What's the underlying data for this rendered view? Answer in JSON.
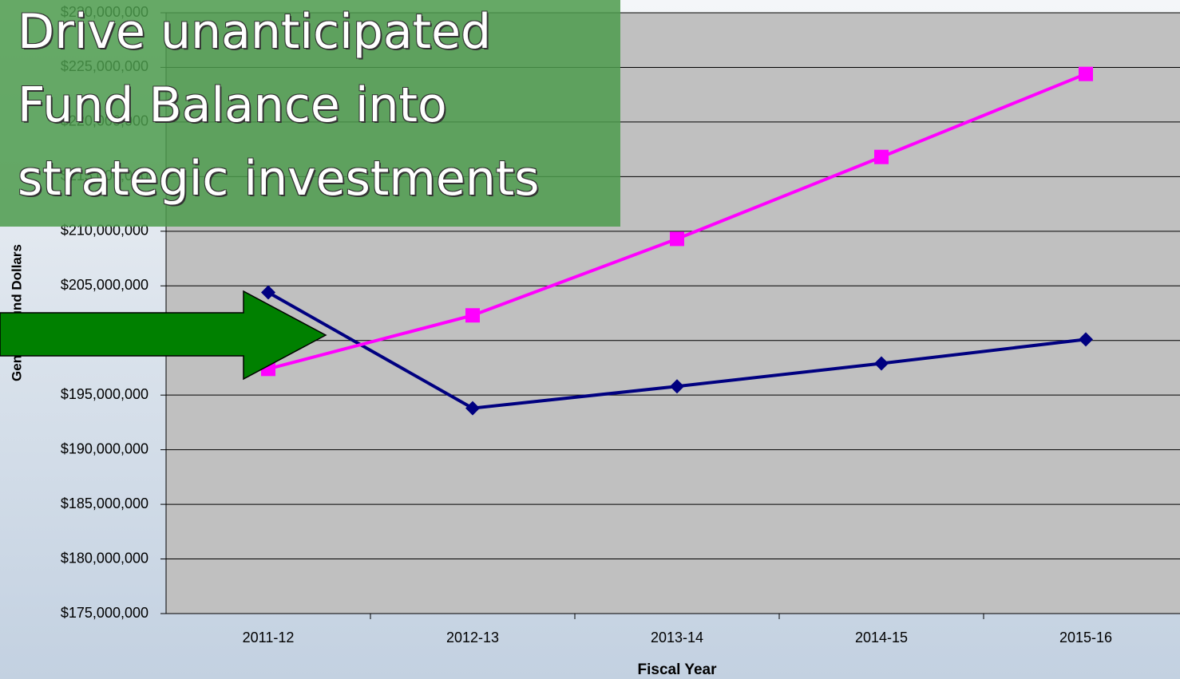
{
  "chart_data": {
    "type": "line",
    "xlabel": "Fiscal Year",
    "ylabel": "General Fund Dollars",
    "categories": [
      "2011-12",
      "2012-13",
      "2013-14",
      "2014-15",
      "2015-16"
    ],
    "series": [
      {
        "color": "#000080",
        "marker": "diamond",
        "values": [
          204400000,
          193800000,
          195800000,
          197900000,
          200100000
        ]
      },
      {
        "color": "#ff00ff",
        "marker": "square",
        "values": [
          197400000,
          202300000,
          209300000,
          216800000,
          224400000
        ]
      }
    ],
    "ylim": [
      175000000,
      230000000
    ],
    "yticks": [
      {
        "value": 175000000,
        "label": "$175,000,000"
      },
      {
        "value": 180000000,
        "label": "$180,000,000"
      },
      {
        "value": 185000000,
        "label": "$185,000,000"
      },
      {
        "value": 190000000,
        "label": "$190,000,000"
      },
      {
        "value": 195000000,
        "label": "$195,000,000"
      },
      {
        "value": 200000000,
        "label": "$200,000,000"
      },
      {
        "value": 205000000,
        "label": "$205,000,000"
      },
      {
        "value": 210000000,
        "label": "$210,000,000"
      },
      {
        "value": 215000000,
        "label": "$215,000,000"
      },
      {
        "value": 220000000,
        "label": "$220,000,000"
      },
      {
        "value": 225000000,
        "label": "$225,000,000"
      },
      {
        "value": 230000000,
        "label": "$230,000,000"
      }
    ],
    "grid": true
  },
  "callout": {
    "lines": [
      "Drive unanticipated",
      "Fund Balance into",
      "strategic investments"
    ]
  }
}
